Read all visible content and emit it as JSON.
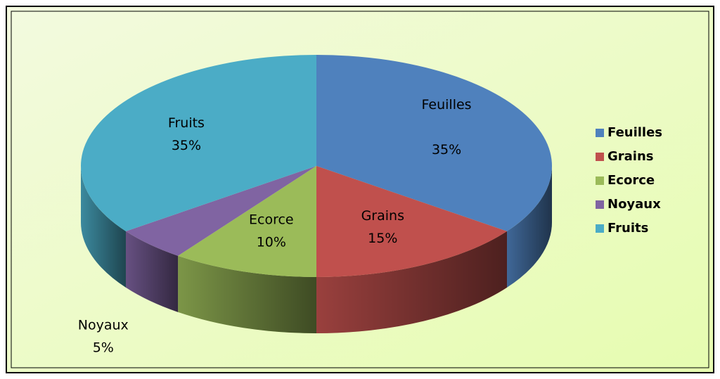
{
  "chart_data": {
    "type": "pie3d",
    "categories": [
      "Feuilles",
      "Grains",
      "Ecorce",
      "Noyaux",
      "Fruits"
    ],
    "values": [
      35,
      15,
      10,
      5,
      35
    ],
    "value_labels": [
      "35%",
      "15%",
      "10%",
      "5%",
      "35%"
    ],
    "colors": [
      "#4f81bd",
      "#c0504d",
      "#9bbb59",
      "#8064a2",
      "#4bacc6"
    ],
    "legend": "right"
  }
}
